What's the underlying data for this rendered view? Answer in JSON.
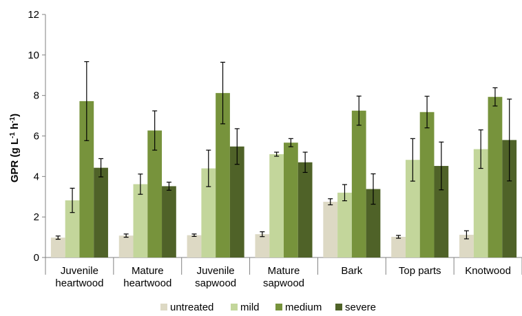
{
  "chart_data": {
    "type": "bar",
    "title": "",
    "xlabel": "",
    "ylabel": {
      "main": "GPR (g L",
      "sup1": "-1",
      "mid": " h",
      "sup2": "-1",
      "end": ")"
    },
    "ylim": [
      0,
      12
    ],
    "yticks": [
      "0",
      "2",
      "4",
      "6",
      "8",
      "10",
      "12"
    ],
    "categories": [
      [
        "Juvenile",
        "heartwood"
      ],
      [
        "Mature",
        "heartwood"
      ],
      [
        "Juvenile",
        "sapwood"
      ],
      [
        "Mature",
        "sapwood"
      ],
      [
        "Bark"
      ],
      [
        "Top parts"
      ],
      [
        "Knotwood"
      ]
    ],
    "legend_position": "bottom",
    "grid": false,
    "error_bars": true,
    "series": [
      {
        "name": "untreated",
        "color": "#ddd9c4",
        "values": [
          0.98,
          1.08,
          1.1,
          1.15,
          2.75,
          1.02,
          1.12
        ],
        "errors": [
          0.08,
          0.08,
          0.06,
          0.12,
          0.15,
          0.07,
          0.2
        ]
      },
      {
        "name": "mild",
        "color": "#c3d69b",
        "values": [
          2.82,
          3.62,
          4.4,
          5.1,
          3.2,
          4.82,
          5.35
        ],
        "errors": [
          0.6,
          0.5,
          0.9,
          0.1,
          0.4,
          1.05,
          0.95
        ]
      },
      {
        "name": "medium",
        "color": "#77933c",
        "values": [
          7.72,
          6.27,
          8.12,
          5.67,
          7.25,
          7.18,
          7.93
        ],
        "errors": [
          1.95,
          0.97,
          1.52,
          0.2,
          0.72,
          0.78,
          0.45
        ]
      },
      {
        "name": "severe",
        "color": "#4f6228",
        "values": [
          4.43,
          3.52,
          5.48,
          4.7,
          3.38,
          4.52,
          5.8
        ],
        "errors": [
          0.45,
          0.2,
          0.88,
          0.5,
          0.75,
          1.18,
          2.02
        ]
      }
    ]
  }
}
